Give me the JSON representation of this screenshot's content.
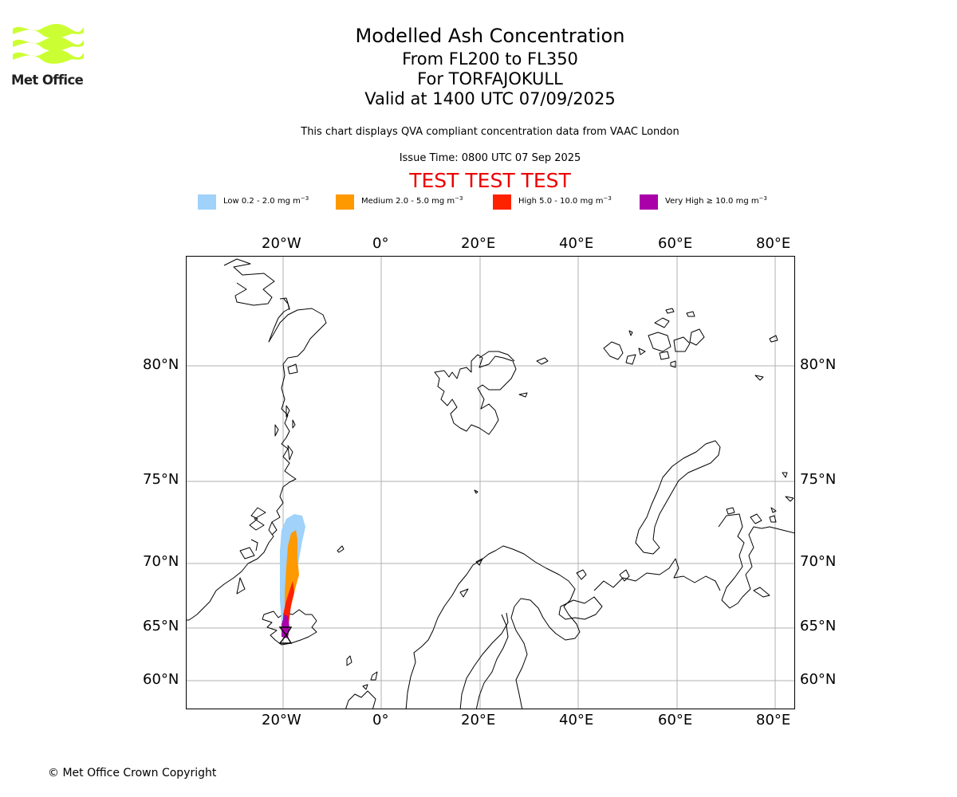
{
  "logo": {
    "text": "Met Office",
    "color": "#ccff33"
  },
  "title": {
    "line1": "Modelled Ash Concentration",
    "line2": "From FL200 to FL350",
    "line3": "For TORFAJOKULL",
    "line4": "Valid at 1400 UTC 07/09/2025"
  },
  "subtitle": "This chart displays QVA compliant concentration data from VAAC London",
  "issue_time": "Issue Time: 0800 UTC 07 Sep 2025",
  "test_banner": "TEST TEST TEST",
  "legend": [
    {
      "label": "Low 0.2 - 2.0 mg m",
      "unit_exp": "−3",
      "color": "#a0d2fa"
    },
    {
      "label": "Medium 2.0 - 5.0 mg m",
      "unit_exp": "−3",
      "color": "#ff9900"
    },
    {
      "label": "High 5.0 - 10.0 mg m",
      "unit_exp": "−3",
      "color": "#ff2200"
    },
    {
      "label": "Very High  ≥  10.0 mg m",
      "unit_exp": "−3",
      "color": "#aa00aa"
    }
  ],
  "map": {
    "longitude_labels": [
      "20°W",
      "0°",
      "20°E",
      "40°E",
      "60°E",
      "80°E"
    ],
    "latitude_labels": [
      "80°N",
      "75°N",
      "70°N",
      "65°N",
      "60°N"
    ],
    "grid": true,
    "volcano": "TORFAJOKULL"
  },
  "copyright": "© Met Office Crown Copyright"
}
